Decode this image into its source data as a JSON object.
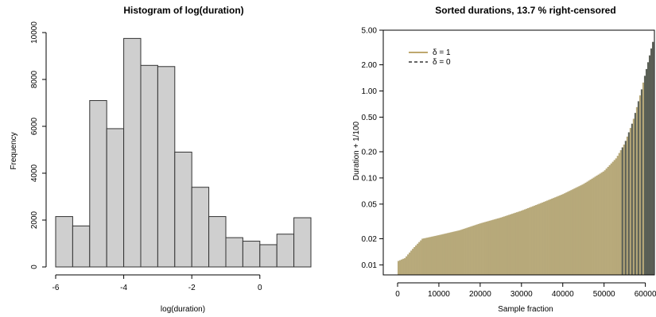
{
  "chart_data": [
    {
      "type": "bar",
      "title": "Histogram of log(duration)",
      "xlabel": "log(duration)",
      "ylabel": "Frequency",
      "bin_edges": [
        -6.0,
        -5.5,
        -5.0,
        -4.5,
        -4.0,
        -3.5,
        -3.0,
        -2.5,
        -2.0,
        -1.5,
        -1.0,
        -0.5,
        0.0,
        0.5,
        1.0,
        1.5
      ],
      "values": [
        2150,
        1750,
        7100,
        5900,
        9750,
        8600,
        8550,
        4900,
        3400,
        2150,
        1250,
        1100,
        950,
        1400,
        2100
      ],
      "xlim": [
        -6,
        1.5
      ],
      "ylim": [
        0,
        10000
      ],
      "xticks": [
        "-6",
        "-4",
        "-2",
        "0"
      ],
      "yticks": [
        "0",
        "2000",
        "4000",
        "6000",
        "8000",
        "10000"
      ],
      "grid": false
    },
    {
      "type": "area",
      "title": "Sorted durations, 13.7 % right-censored",
      "xlabel": "Sample fraction",
      "ylabel": "Duration + 1/100",
      "y_scale": "log",
      "xlim": [
        0,
        62000
      ],
      "ylim": [
        0.008,
        5
      ],
      "xticks": [
        "0",
        "10000",
        "20000",
        "30000",
        "40000",
        "50000",
        "60000"
      ],
      "yticks": [
        "0.01",
        "0.02",
        "0.05",
        "0.10",
        "0.20",
        "0.50",
        "1.00",
        "2.00",
        "5.00"
      ],
      "x": [
        0,
        1800,
        3500,
        6000,
        10000,
        15000,
        20000,
        25000,
        30000,
        35000,
        40000,
        45000,
        50000,
        53000,
        55000,
        57000,
        59000,
        60500,
        61500,
        62000
      ],
      "y": [
        0.011,
        0.012,
        0.015,
        0.02,
        0.022,
        0.025,
        0.03,
        0.035,
        0.042,
        0.052,
        0.065,
        0.085,
        0.12,
        0.17,
        0.25,
        0.45,
        1.0,
        2.0,
        3.2,
        4.0
      ],
      "legend": [
        {
          "label": "δ = 1",
          "color": "#a88a3e",
          "style": "solid"
        },
        {
          "label": "δ = 0",
          "color": "#333333",
          "style": "dashed"
        }
      ],
      "legend_position": "top-left",
      "fill_color_uncensored": "#b7a97a",
      "fill_color_censored": "#4a5046",
      "grid": false
    }
  ]
}
